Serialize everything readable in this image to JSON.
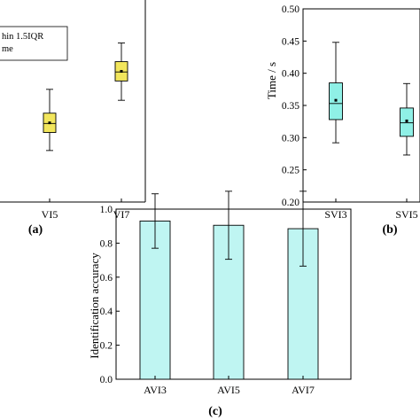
{
  "colors": {
    "box_yellow": "#f2e65c",
    "box_cyan": "#8ff0e6",
    "bar_cyan": "#bff5f2",
    "axis": "#000000"
  },
  "chart_data": [
    {
      "panel": "(a)",
      "type": "box",
      "categories": [
        "VI5",
        "VI7"
      ],
      "series": [
        {
          "values": [
            {
              "category": "VI5",
              "min": 0.28,
              "q1": 0.308,
              "median": 0.322,
              "q3": 0.338,
              "max": 0.375,
              "mean": 0.323
            },
            {
              "category": "VI7",
              "min": 0.358,
              "q1": 0.388,
              "median": 0.402,
              "q3": 0.418,
              "max": 0.447,
              "mean": 0.403
            }
          ]
        }
      ],
      "legend_text": [
        "hin 1.5IQR",
        "me"
      ],
      "ylim": [
        0.2,
        0.5
      ],
      "grid": false
    },
    {
      "panel": "(b)",
      "type": "box",
      "categories": [
        "SVI3",
        "SVI5"
      ],
      "series": [
        {
          "values": [
            {
              "category": "SVI3",
              "min": 0.292,
              "q1": 0.328,
              "median": 0.353,
              "q3": 0.385,
              "max": 0.448,
              "mean": 0.358
            },
            {
              "category": "SVI5",
              "min": 0.273,
              "q1": 0.302,
              "median": 0.323,
              "q3": 0.346,
              "max": 0.384,
              "mean": 0.326
            }
          ]
        }
      ],
      "ylabel": "Time / s",
      "ylim": [
        0.2,
        0.5
      ],
      "yticks": [
        "0.20",
        "0.25",
        "0.30",
        "0.35",
        "0.40",
        "0.45",
        "0.50"
      ],
      "grid": false
    },
    {
      "panel": "(c)",
      "type": "bar",
      "categories": [
        "AVI3",
        "AVI5",
        "AVI7"
      ],
      "series": [
        {
          "values": [
            0.93,
            0.905,
            0.885
          ],
          "errors": [
            0.16,
            0.2,
            0.22
          ]
        }
      ],
      "ylabel": "Identification accuracy",
      "ylim": [
        0.0,
        1.0
      ],
      "yticks": [
        "0.0",
        "0.2",
        "0.4",
        "0.6",
        "0.8",
        "1.0"
      ],
      "grid": false
    }
  ]
}
